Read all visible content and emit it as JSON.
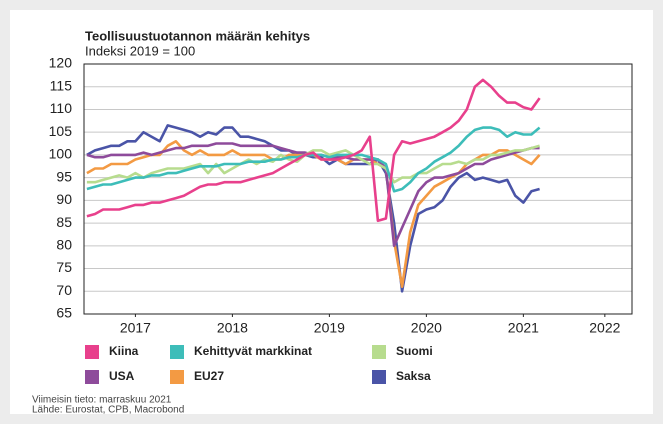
{
  "chart_data": {
    "type": "line",
    "title": "Teollisuustuotannon määrän kehitys",
    "subtitle": "Indeksi 2019 = 100",
    "notes": [
      "Viimeisin tieto: marraskuu 2021",
      "Lähde: Eurostat, CPB, Macrobond"
    ],
    "x": [
      2017,
      2017.083,
      2017.167,
      2017.25,
      2017.333,
      2017.417,
      2017.5,
      2017.583,
      2017.667,
      2017.75,
      2017.833,
      2017.917,
      2018,
      2018.083,
      2018.167,
      2018.25,
      2018.333,
      2018.417,
      2018.5,
      2018.583,
      2018.667,
      2018.75,
      2018.833,
      2018.917,
      2019,
      2019.083,
      2019.167,
      2019.25,
      2019.333,
      2019.417,
      2019.5,
      2019.583,
      2019.667,
      2019.75,
      2019.833,
      2019.917,
      2020,
      2020.083,
      2020.167,
      2020.25,
      2020.333,
      2020.417,
      2020.5,
      2020.583,
      2020.667,
      2020.75,
      2020.833,
      2020.917,
      2021,
      2021.083,
      2021.167,
      2021.25,
      2021.333,
      2021.417,
      2021.5,
      2021.583,
      2021.667
    ],
    "series": [
      {
        "name": "Kiina",
        "color": "#e8408c",
        "values": [
          86.5,
          87,
          88,
          88,
          88,
          88.5,
          89,
          89,
          89.5,
          89.5,
          90,
          90.5,
          91,
          92,
          93,
          93.5,
          93.5,
          94,
          94,
          94,
          94.5,
          95,
          95.5,
          96,
          97,
          98,
          99,
          100,
          100.5,
          99,
          99,
          99,
          99.5,
          100,
          101,
          104,
          85.5,
          86,
          100,
          103,
          102.5,
          103,
          103.5,
          104,
          105,
          106,
          107.5,
          110,
          115,
          116.5,
          115,
          113,
          111.5,
          111.5,
          110.5,
          110,
          112.5
        ]
      },
      {
        "name": "Kehittyvät markkinat",
        "color": "#3dbdb9",
        "values": [
          92.5,
          93,
          93.5,
          93.5,
          94,
          94.5,
          95,
          95,
          95.5,
          95.5,
          96,
          96,
          96.5,
          97,
          97.5,
          97.5,
          97.5,
          98,
          98,
          98,
          98.5,
          98.5,
          98.5,
          99,
          99,
          99.5,
          99.5,
          100,
          100,
          100,
          99.5,
          100,
          100,
          100,
          100,
          99.5,
          99,
          98,
          92,
          92.5,
          94,
          96,
          97,
          98.5,
          99.5,
          100.5,
          102,
          104,
          105.5,
          106,
          106,
          105.5,
          104,
          105,
          104.5,
          104.5,
          106
        ]
      },
      {
        "name": "Suomi",
        "color": "#b7dc8e",
        "values": [
          94,
          94,
          94.5,
          95,
          95.5,
          95,
          96,
          95,
          96,
          96.5,
          97,
          97,
          97,
          97.5,
          98,
          96,
          98,
          96,
          97,
          98,
          99,
          98,
          99,
          98.5,
          100,
          99,
          98.5,
          100,
          101,
          101,
          100,
          100.5,
          101,
          100,
          99,
          98,
          98,
          97,
          94,
          95,
          95,
          96,
          96,
          97,
          98,
          98,
          98.5,
          98,
          99,
          99,
          100,
          100,
          100.5,
          101,
          101,
          101.5,
          102
        ]
      },
      {
        "name": "USA",
        "color": "#8e4b9b",
        "values": [
          100,
          99.5,
          99.5,
          100,
          100,
          100,
          100,
          100.5,
          100,
          100.5,
          101,
          101.5,
          101.5,
          102,
          102,
          102,
          102.5,
          102.5,
          102.5,
          102,
          102,
          102,
          102,
          102,
          101.5,
          101,
          100.5,
          100.5,
          100,
          100,
          99.5,
          99.5,
          99.5,
          99,
          99,
          99,
          99,
          97,
          80,
          84,
          88,
          92,
          94,
          95,
          95,
          95.5,
          96,
          97,
          98,
          98,
          99,
          99.5,
          100,
          100.5,
          101,
          101.5,
          101.5
        ]
      },
      {
        "name": "EU27",
        "color": "#f39a43",
        "values": [
          96,
          97,
          97,
          98,
          98,
          98,
          99,
          99.5,
          100,
          100,
          102,
          103,
          101,
          100,
          101,
          100,
          100,
          100,
          101,
          100,
          100,
          100,
          100,
          99,
          99,
          100,
          100,
          100,
          100,
          99,
          99,
          99,
          98,
          99,
          99,
          99,
          98,
          97,
          81,
          71,
          83,
          89,
          91,
          93,
          94,
          95,
          96,
          98,
          99,
          100,
          100,
          101,
          101,
          100,
          99,
          98,
          100
        ]
      },
      {
        "name": "Saksa",
        "color": "#4a54a7",
        "values": [
          100,
          101,
          101.5,
          102,
          102,
          103,
          103,
          105,
          104,
          103,
          106.5,
          106,
          105.5,
          105,
          104,
          105,
          104.5,
          106,
          106,
          104,
          104,
          103.5,
          103,
          102,
          101,
          101,
          100,
          100,
          99.5,
          99.5,
          98,
          99,
          98,
          98,
          98,
          98,
          99,
          96,
          85,
          70,
          80,
          87,
          88,
          88.5,
          90,
          93,
          95,
          96,
          94.5,
          95,
          94.5,
          94,
          94.5,
          91,
          89.5,
          92,
          92.5
        ]
      }
    ],
    "xlim": [
      2016.97,
      2022.62
    ],
    "xticks": [
      {
        "value": 2017.5,
        "label": "2017"
      },
      {
        "value": 2018.5,
        "label": "2018"
      },
      {
        "value": 2019.5,
        "label": "2019"
      },
      {
        "value": 2020.5,
        "label": "2020"
      },
      {
        "value": 2021.5,
        "label": "2021"
      },
      {
        "value": 2022.34,
        "label": "2022"
      }
    ],
    "ylim": [
      65,
      120
    ],
    "yticks": [
      65,
      70,
      75,
      80,
      85,
      90,
      95,
      100,
      105,
      110,
      115,
      120
    ],
    "grid": true
  }
}
